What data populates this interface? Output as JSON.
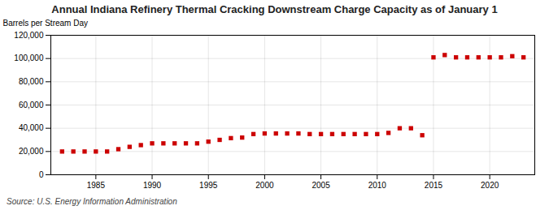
{
  "chart_data": {
    "type": "scatter",
    "title": "Annual Indiana Refinery Thermal Cracking Downstream Charge Capacity as of January 1",
    "ylabel": "Barrels per Stream Day",
    "source": "Source: U.S. Energy Information Administration",
    "x": [
      1982,
      1983,
      1984,
      1985,
      1986,
      1987,
      1988,
      1989,
      1990,
      1991,
      1992,
      1993,
      1994,
      1995,
      1996,
      1997,
      1998,
      1999,
      2000,
      2001,
      2002,
      2003,
      2004,
      2005,
      2006,
      2007,
      2008,
      2009,
      2010,
      2011,
      2012,
      2013,
      2014,
      2015,
      2016,
      2017,
      2018,
      2019,
      2020,
      2021,
      2022,
      2023
    ],
    "values": [
      20000,
      20000,
      20000,
      20000,
      20000,
      22000,
      24000,
      25500,
      27000,
      27000,
      27000,
      27000,
      27000,
      28500,
      30000,
      31500,
      32000,
      35000,
      35500,
      35500,
      35500,
      35500,
      35000,
      35000,
      35000,
      35000,
      35000,
      35000,
      35000,
      36000,
      40000,
      40000,
      34000,
      101000,
      103000,
      101000,
      101000,
      101000,
      101000,
      101000,
      102000,
      101000
    ],
    "color": "#cc0000",
    "marker": "square",
    "grid": true,
    "xlim": [
      1981,
      2024
    ],
    "xticks": [
      1985,
      1990,
      1995,
      2000,
      2005,
      2010,
      2015,
      2020
    ],
    "ylim": [
      0,
      120000
    ],
    "yticks": [
      0,
      {
        "value": 20000,
        "label": "20,000"
      },
      {
        "value": 40000,
        "label": "40,000"
      },
      {
        "value": 60000,
        "label": "60,000"
      },
      {
        "value": 80000,
        "label": "80,000"
      },
      {
        "value": 100000,
        "label": "100,000"
      },
      {
        "value": 120000,
        "label": "120,000"
      }
    ]
  }
}
